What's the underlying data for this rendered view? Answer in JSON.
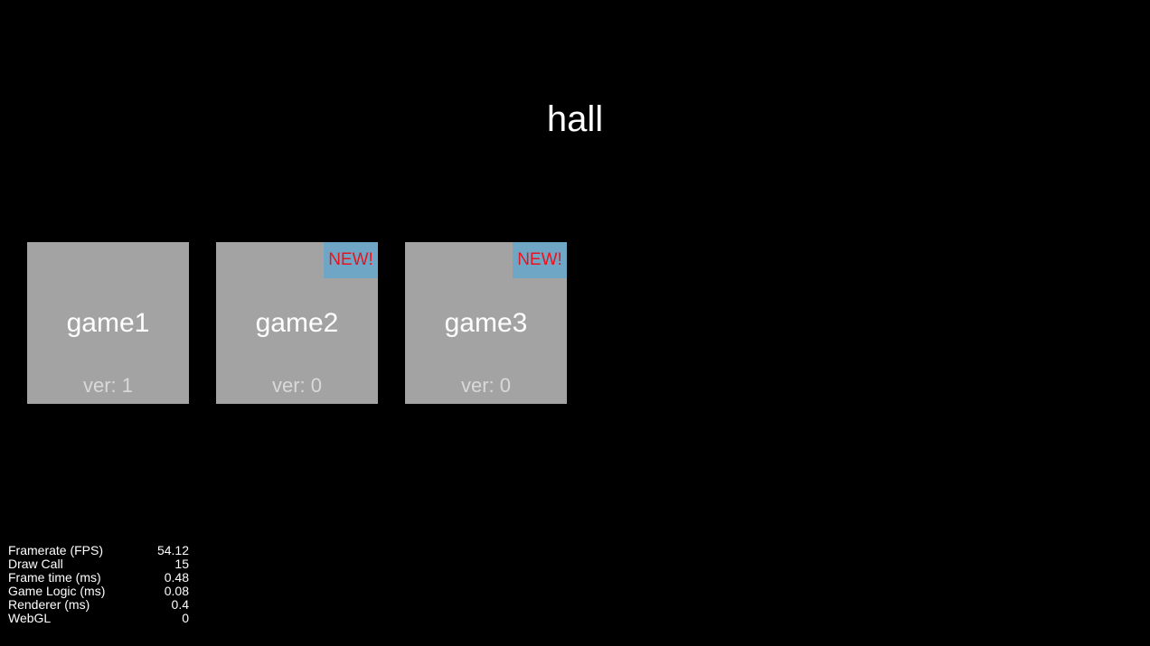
{
  "scene": {
    "title": "hall"
  },
  "games": [
    {
      "name": "game1",
      "version": "ver: 1",
      "badge": ""
    },
    {
      "name": "game2",
      "version": "ver: 0",
      "badge": "NEW!"
    },
    {
      "name": "game3",
      "version": "ver: 0",
      "badge": "NEW!"
    }
  ],
  "stats": [
    {
      "label": "Framerate (FPS)",
      "value": "54.12"
    },
    {
      "label": "Draw Call",
      "value": "15"
    },
    {
      "label": "Frame time (ms)",
      "value": "0.48"
    },
    {
      "label": "Game Logic (ms)",
      "value": "0.08"
    },
    {
      "label": "Renderer (ms)",
      "value": "0.4"
    },
    {
      "label": "WebGL",
      "value": "0"
    }
  ],
  "colors": {
    "background": "#000000",
    "card": "#a3a3a3",
    "badge_bg": "#6fa6c6",
    "badge_text": "#e8141e"
  }
}
